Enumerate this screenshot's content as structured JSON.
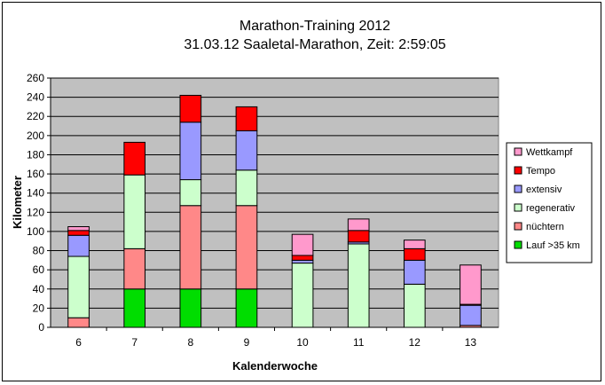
{
  "chart_data": {
    "type": "bar",
    "stacked": true,
    "title": "Marathon-Training 2012",
    "subtitle": "31.03.12 Saaletal-Marathon, Zeit: 2:59:05",
    "xlabel": "Kalenderwoche",
    "ylabel": "Kilometer",
    "ylim": [
      0,
      260
    ],
    "ytick_step": 20,
    "grid": true,
    "legend_position": "right",
    "categories": [
      "6",
      "7",
      "8",
      "9",
      "10",
      "11",
      "12",
      "13"
    ],
    "series": [
      {
        "name": "Lauf >35 km",
        "color": "#00dd00",
        "values": [
          0,
          40,
          40,
          40,
          0,
          0,
          0,
          0
        ]
      },
      {
        "name": "nüchtern",
        "color": "#ff8888",
        "values": [
          10,
          42,
          87,
          87,
          0,
          0,
          0,
          2
        ]
      },
      {
        "name": "regenerativ",
        "color": "#ccffcc",
        "values": [
          64,
          77,
          27,
          37,
          67,
          87,
          45,
          0
        ]
      },
      {
        "name": "extensiv",
        "color": "#9999ff",
        "values": [
          22,
          0,
          60,
          41,
          3,
          2,
          25,
          21
        ]
      },
      {
        "name": "Tempo",
        "color": "#ff0000",
        "values": [
          5,
          34,
          28,
          25,
          5,
          12,
          12,
          1
        ]
      },
      {
        "name": "Wettkampf",
        "color": "#ff99cc",
        "values": [
          4,
          0,
          0,
          0,
          22,
          12,
          9,
          41
        ]
      }
    ]
  }
}
